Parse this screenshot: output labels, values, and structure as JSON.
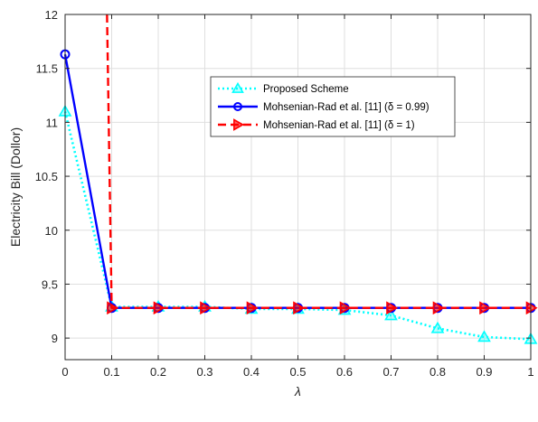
{
  "chart_data": {
    "type": "line",
    "title": "",
    "xlabel": "λ",
    "ylabel": "Electricity Bill (Dollor)",
    "xlim": [
      0,
      1
    ],
    "ylim": [
      8.8,
      12
    ],
    "xticks": [
      "0",
      "0.1",
      "0.2",
      "0.3",
      "0.4",
      "0.5",
      "0.6",
      "0.7",
      "0.8",
      "0.9",
      "1"
    ],
    "yticks": [
      "9",
      "9.5",
      "10",
      "10.5",
      "11",
      "11.5",
      "12"
    ],
    "grid": true,
    "legend_position": "top-right",
    "series": [
      {
        "name": "Proposed Scheme",
        "color": "#00ffff",
        "line_style": "dotted",
        "marker": "triangle-up",
        "x": [
          0,
          0.1,
          0.2,
          0.3,
          0.4,
          0.5,
          0.6,
          0.7,
          0.8,
          0.9,
          1
        ],
        "y": [
          11.1,
          9.29,
          9.29,
          9.29,
          9.27,
          9.27,
          9.26,
          9.21,
          9.09,
          9.01,
          8.99
        ]
      },
      {
        "name": "Mohsenian-Rad et al. [11] (δ = 0.99)",
        "color": "#0000ff",
        "line_style": "solid",
        "marker": "circle",
        "x": [
          0,
          0.1,
          0.2,
          0.3,
          0.4,
          0.5,
          0.6,
          0.7,
          0.8,
          0.9,
          1
        ],
        "y": [
          11.63,
          9.28,
          9.28,
          9.28,
          9.28,
          9.28,
          9.28,
          9.28,
          9.28,
          9.28,
          9.28
        ]
      },
      {
        "name": "Mohsenian-Rad et al. [11] (δ = 1)",
        "color": "#ff0000",
        "line_style": "dashed",
        "marker": "triangle-right",
        "x": [
          0.09,
          0.1,
          0.2,
          0.3,
          0.4,
          0.5,
          0.6,
          0.7,
          0.8,
          0.9,
          1
        ],
        "y": [
          12,
          9.28,
          9.28,
          9.28,
          9.28,
          9.28,
          9.28,
          9.28,
          9.28,
          9.28,
          9.28
        ],
        "marker_indices": [
          1,
          2,
          3,
          4,
          5,
          6,
          7,
          8,
          9,
          10
        ]
      }
    ]
  }
}
